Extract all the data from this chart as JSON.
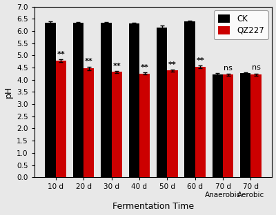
{
  "categories": [
    "10 d",
    "20 d",
    "30 d",
    "40 d",
    "50 d",
    "60 d",
    "70 d\nAnaerobic",
    "70 d\nAerobic"
  ],
  "ck_values": [
    6.35,
    6.33,
    6.33,
    6.32,
    6.15,
    6.38,
    4.22,
    4.27
  ],
  "ck_errors": [
    0.04,
    0.03,
    0.03,
    0.03,
    0.08,
    0.04,
    0.05,
    0.04
  ],
  "qz_values": [
    4.78,
    4.47,
    4.32,
    4.25,
    4.38,
    4.52,
    4.21,
    4.21
  ],
  "qz_errors": [
    0.05,
    0.07,
    0.04,
    0.04,
    0.04,
    0.06,
    0.04,
    0.04
  ],
  "significance": [
    "**",
    "**",
    "**",
    "**",
    "**",
    "**",
    "ns",
    "ns"
  ],
  "ck_color": "#000000",
  "qz_color": "#cc0000",
  "ylabel": "pH",
  "xlabel": "Fermentation Time",
  "ylim": [
    0.0,
    7.0
  ],
  "yticks": [
    0.0,
    0.5,
    1.0,
    1.5,
    2.0,
    2.5,
    3.0,
    3.5,
    4.0,
    4.5,
    5.0,
    5.5,
    6.0,
    6.5,
    7.0
  ],
  "legend_labels": [
    "CK",
    "QZ227"
  ],
  "bar_width": 0.38,
  "figsize": [
    4.0,
    3.12
  ],
  "dpi": 100,
  "bg_color": "#e8e8e8",
  "plot_bg_color": "#e8e8e8"
}
